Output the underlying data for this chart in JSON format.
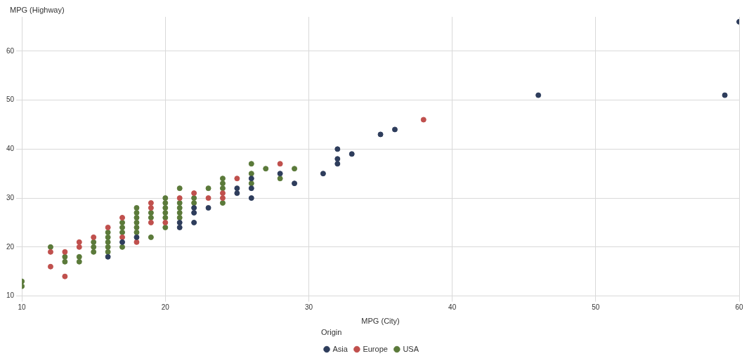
{
  "chart_data": {
    "type": "scatter",
    "xlabel": "MPG (City)",
    "ylabel": "MPG (Highway)",
    "legend_title": "Origin",
    "legend": "bottom",
    "grid": true,
    "marker": "circle",
    "xlim": [
      10,
      60
    ],
    "xticks": [
      10,
      20,
      30,
      40,
      50,
      60
    ],
    "ylim": [
      10,
      67
    ],
    "yticks": [
      10,
      20,
      30,
      40,
      50,
      60
    ],
    "series": [
      {
        "name": "Asia",
        "color": "#2e3d5c",
        "x": [
          16,
          17,
          18,
          21,
          21,
          22,
          22,
          22,
          23,
          25,
          25,
          26,
          26,
          26,
          28,
          29,
          31,
          32,
          32,
          32,
          33,
          35,
          36,
          46,
          59,
          60
        ],
        "values": [
          18,
          21,
          22,
          25,
          24,
          28,
          27,
          25,
          28,
          32,
          31,
          34,
          32,
          30,
          35,
          33,
          35,
          40,
          38,
          37,
          39,
          43,
          44,
          51,
          51,
          66
        ]
      },
      {
        "name": "Europe",
        "color": "#c0504d",
        "x": [
          12,
          12,
          13,
          13,
          14,
          14,
          15,
          16,
          17,
          17,
          18,
          19,
          19,
          19,
          20,
          21,
          22,
          23,
          24,
          24,
          25,
          28,
          38
        ],
        "values": [
          19,
          16,
          19,
          14,
          21,
          20,
          22,
          24,
          26,
          22,
          21,
          29,
          28,
          25,
          25,
          30,
          31,
          30,
          31,
          30,
          34,
          37,
          46
        ]
      },
      {
        "name": "USA",
        "color": "#5b7a3a",
        "x": [
          10,
          10,
          12,
          13,
          13,
          14,
          14,
          15,
          15,
          15,
          16,
          16,
          16,
          16,
          16,
          17,
          17,
          17,
          17,
          18,
          18,
          18,
          18,
          18,
          18,
          19,
          19,
          19,
          20,
          20,
          20,
          20,
          20,
          20,
          21,
          21,
          21,
          21,
          21,
          22,
          22,
          23,
          24,
          24,
          24,
          24,
          26,
          26,
          26,
          27,
          28,
          29
        ],
        "values": [
          13,
          12,
          20,
          18,
          17,
          18,
          17,
          21,
          20,
          19,
          23,
          22,
          21,
          20,
          19,
          25,
          24,
          23,
          20,
          28,
          27,
          26,
          25,
          24,
          23,
          27,
          26,
          22,
          30,
          29,
          28,
          27,
          26,
          24,
          32,
          29,
          28,
          27,
          26,
          30,
          29,
          32,
          34,
          33,
          32,
          29,
          37,
          35,
          33,
          36,
          34,
          36
        ]
      }
    ]
  }
}
